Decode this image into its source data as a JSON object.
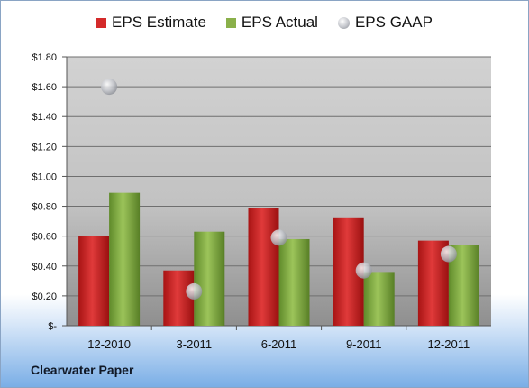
{
  "company": "Clearwater Paper",
  "chart_data": {
    "type": "bar",
    "categories": [
      "12-2010",
      "3-2011",
      "6-2011",
      "9-2011",
      "12-2011"
    ],
    "series": [
      {
        "name": "EPS Estimate",
        "kind": "bar",
        "color": "#d42a2a",
        "values": [
          0.6,
          0.37,
          0.79,
          0.72,
          0.57
        ]
      },
      {
        "name": "EPS Actual",
        "kind": "bar",
        "color": "#8ab04a",
        "values": [
          0.89,
          0.63,
          0.58,
          0.36,
          0.54
        ]
      },
      {
        "name": "EPS GAAP",
        "kind": "marker",
        "color": "#c9ccd2",
        "values": [
          1.6,
          0.23,
          0.59,
          0.37,
          0.48
        ]
      }
    ],
    "ylim": [
      0,
      1.8
    ],
    "yticks": [
      {
        "value": 0,
        "label": "$-"
      },
      {
        "value": 0.2,
        "label": "$0.20"
      },
      {
        "value": 0.4,
        "label": "$0.40"
      },
      {
        "value": 0.6,
        "label": "$0.60"
      },
      {
        "value": 0.8,
        "label": "$0.80"
      },
      {
        "value": 1.0,
        "label": "$1.00"
      },
      {
        "value": 1.2,
        "label": "$1.20"
      },
      {
        "value": 1.4,
        "label": "$1.40"
      },
      {
        "value": 1.6,
        "label": "$1.60"
      },
      {
        "value": 1.8,
        "label": "$1.80"
      }
    ],
    "grid": true,
    "legend": "top-center"
  }
}
